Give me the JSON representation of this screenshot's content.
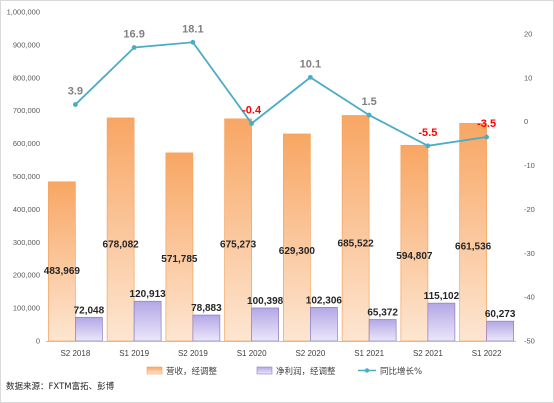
{
  "chart_data": {
    "type": "bar",
    "categories": [
      "S2 2018",
      "S1 2019",
      "S2 2019",
      "S1 2020",
      "S2 2020",
      "S1 2021",
      "S2 2021",
      "S1 2022"
    ],
    "series": [
      {
        "name": "营收，经调整",
        "kind": "bar",
        "axis": "left",
        "values": [
          483969,
          678082,
          571785,
          675273,
          629300,
          685522,
          594807,
          661536
        ],
        "labels": [
          "483,969",
          "678,082",
          "571,785",
          "675,273",
          "629,300",
          "685,522",
          "594,807",
          "661,536"
        ]
      },
      {
        "name": "净利润，经调整",
        "kind": "bar",
        "axis": "left",
        "values": [
          72048,
          120913,
          78883,
          100398,
          102306,
          65372,
          115102,
          60273
        ],
        "labels": [
          "72,048",
          "120,913",
          "78,883",
          "100,398",
          "102,306",
          "65,372",
          "115,102",
          "60,273"
        ]
      },
      {
        "name": "同比增长%",
        "kind": "line",
        "axis": "right",
        "values": [
          3.9,
          16.9,
          18.1,
          -0.4,
          10.1,
          1.5,
          -5.5,
          -3.5
        ],
        "labels": [
          "3.9",
          "16.9",
          "18.1",
          "-0.4",
          "10.1",
          "1.5",
          "-5.5",
          "-3.5"
        ]
      }
    ],
    "ylim_left": [
      0,
      1000000
    ],
    "yticks_left": [
      "0",
      "100,000",
      "200,000",
      "300,000",
      "400,000",
      "500,000",
      "600,000",
      "700,000",
      "800,000",
      "900,000",
      "1,000,000"
    ],
    "ylim_right": [
      -50,
      25
    ],
    "yticks_right": [
      "-50",
      "-40",
      "-30",
      "-20",
      "-10",
      "0",
      "10",
      "20"
    ],
    "grid": false,
    "legend_position": "bottom"
  },
  "source_note": "数据来源：FXTM富拓、彭博",
  "colors": {
    "revenue_top": "#f8a663",
    "revenue_bottom": "#fde6d2",
    "revenue_edge": "#f4a460",
    "profit_top": "#b4a7e5",
    "profit_bottom": "#ebe7fa",
    "profit_edge": "#8e7cc3",
    "line": "#4bacc6",
    "positive_label": "#7f7f7f",
    "negative_label": "#ff0000"
  }
}
